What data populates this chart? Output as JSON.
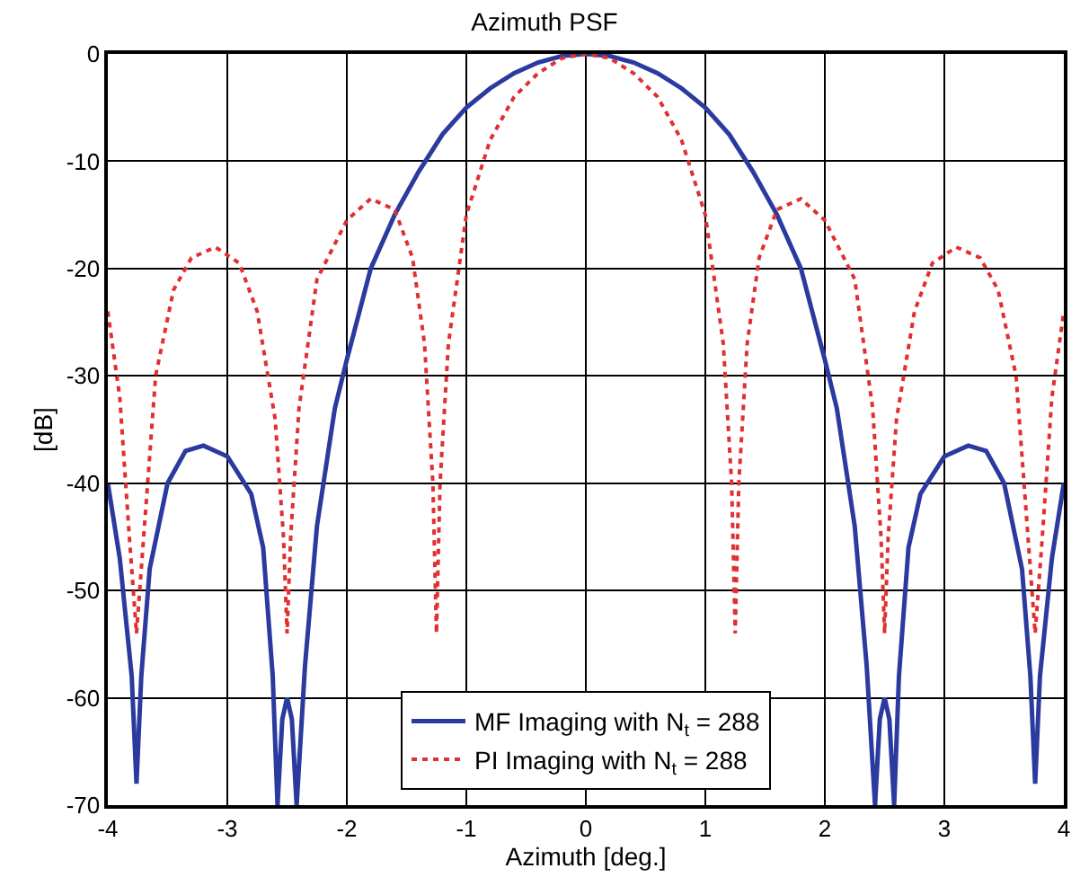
{
  "chart_data": {
    "type": "line",
    "title": "Azimuth PSF",
    "xlabel": "Azimuth [deg.]",
    "ylabel": "[dB]",
    "xlim": [
      -4,
      4
    ],
    "ylim": [
      -70,
      0
    ],
    "xticks": [
      -4,
      -3,
      -2,
      -1,
      0,
      1,
      2,
      3,
      4
    ],
    "yticks": [
      -70,
      -60,
      -50,
      -40,
      -30,
      -20,
      -10,
      0
    ],
    "grid": true,
    "legend": "bottom",
    "marker": "none",
    "series": [
      {
        "name": "MF Imaging with N$_{t}$ = 288",
        "color": "#2b3a9e",
        "line_style": "solid",
        "x": [
          -4,
          -3.9,
          -3.8,
          -3.76,
          -3.72,
          -3.65,
          -3.5,
          -3.35,
          -3.2,
          -3.0,
          -2.8,
          -2.7,
          -2.62,
          -2.58,
          -2.54,
          -2.5,
          -2.46,
          -2.42,
          -2.35,
          -2.25,
          -2.1,
          -2.0,
          -1.8,
          -1.6,
          -1.4,
          -1.2,
          -1.0,
          -0.8,
          -0.6,
          -0.4,
          -0.2,
          0,
          0.2,
          0.4,
          0.6,
          0.8,
          1.0,
          1.2,
          1.4,
          1.6,
          1.8,
          2.0,
          2.1,
          2.25,
          2.35,
          2.42,
          2.46,
          2.5,
          2.54,
          2.58,
          2.62,
          2.7,
          2.8,
          3.0,
          3.2,
          3.35,
          3.5,
          3.65,
          3.72,
          3.76,
          3.8,
          3.9,
          4
        ],
        "values": [
          -40,
          -47,
          -58,
          -68,
          -58,
          -48,
          -40,
          -37,
          -36.5,
          -37.5,
          -41,
          -46,
          -58,
          -70,
          -62,
          -60,
          -62,
          -70,
          -57,
          -44,
          -33,
          -28.5,
          -20,
          -15,
          -11,
          -7.5,
          -5,
          -3.2,
          -1.8,
          -0.8,
          -0.2,
          0,
          -0.2,
          -0.8,
          -1.8,
          -3.2,
          -5,
          -7.5,
          -11,
          -15,
          -20,
          -28.5,
          -33,
          -44,
          -57,
          -70,
          -62,
          -60,
          -62,
          -70,
          -58,
          -46,
          -41,
          -37.5,
          -36.5,
          -37,
          -40,
          -48,
          -58,
          -68,
          -58,
          -47,
          -40
        ]
      },
      {
        "name": "PI Imaging with N$_{t}$ = 288",
        "color": "#e03030",
        "line_style": "dotted",
        "x": [
          -4,
          -3.9,
          -3.82,
          -3.76,
          -3.7,
          -3.6,
          -3.45,
          -3.3,
          -3.1,
          -2.9,
          -2.75,
          -2.6,
          -2.53,
          -2.5,
          -2.47,
          -2.4,
          -2.25,
          -2.0,
          -1.8,
          -1.6,
          -1.45,
          -1.35,
          -1.28,
          -1.25,
          -1.22,
          -1.15,
          -1.0,
          -0.8,
          -0.6,
          -0.4,
          -0.2,
          0,
          0.2,
          0.4,
          0.6,
          0.8,
          1.0,
          1.15,
          1.22,
          1.25,
          1.28,
          1.35,
          1.45,
          1.6,
          1.8,
          2.0,
          2.25,
          2.4,
          2.47,
          2.5,
          2.53,
          2.6,
          2.75,
          2.9,
          3.1,
          3.3,
          3.45,
          3.6,
          3.7,
          3.76,
          3.82,
          3.9,
          4
        ],
        "values": [
          -24,
          -32,
          -45,
          -54,
          -45,
          -30,
          -22,
          -19,
          -18,
          -19.5,
          -24,
          -34,
          -45,
          -54,
          -45,
          -33,
          -21,
          -15.5,
          -13.5,
          -14.5,
          -19,
          -27,
          -40,
          -54,
          -40,
          -27,
          -15,
          -8,
          -4,
          -1.8,
          -0.4,
          0,
          -0.4,
          -1.8,
          -4,
          -8,
          -15,
          -27,
          -40,
          -54,
          -40,
          -27,
          -19,
          -14.5,
          -13.5,
          -15.5,
          -21,
          -33,
          -45,
          -54,
          -45,
          -34,
          -24,
          -19.5,
          -18,
          -19,
          -22,
          -30,
          -45,
          -54,
          -45,
          -32,
          -24
        ]
      }
    ]
  }
}
